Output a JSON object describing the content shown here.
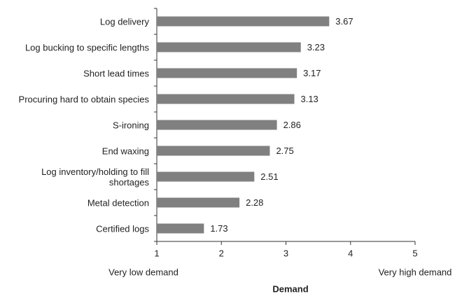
{
  "chart_data": {
    "type": "bar",
    "orientation": "horizontal",
    "categories": [
      "Log delivery",
      "Log bucking to specific lengths",
      "Short lead times",
      "Procuring hard to obtain species",
      "S-ironing",
      "End waxing",
      "Log inventory/holding to fill shortages",
      "Metal detection",
      "Certified logs"
    ],
    "values": [
      3.67,
      3.23,
      3.17,
      3.13,
      2.86,
      2.75,
      2.51,
      2.28,
      1.73
    ],
    "color": "#808080",
    "xlim": [
      1,
      5
    ],
    "xticks": [
      1,
      2,
      3,
      4,
      5
    ],
    "xlabel": "Demand",
    "annotations": [
      "Very low demand",
      "Very high demand"
    ]
  }
}
